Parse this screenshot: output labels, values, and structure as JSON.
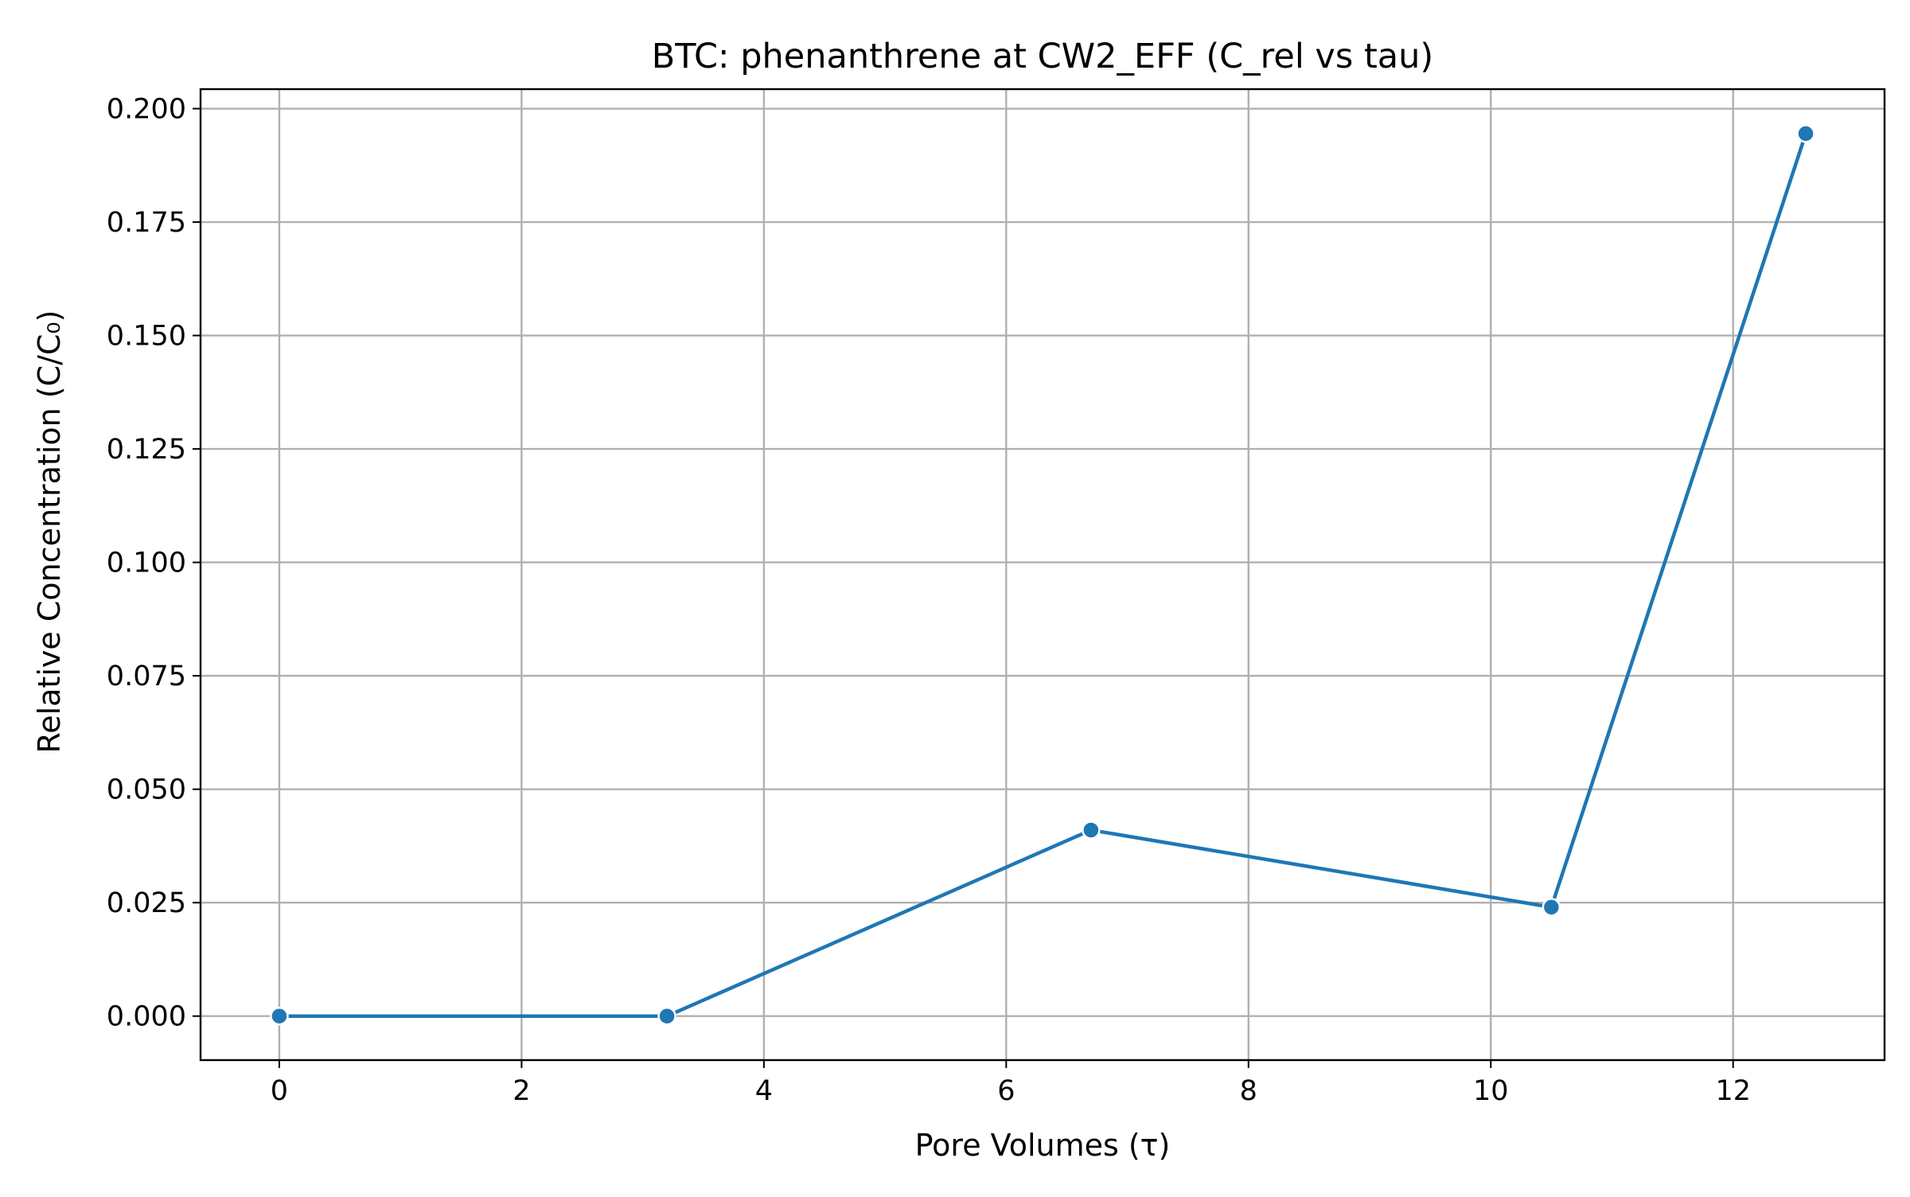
{
  "chart_data": {
    "type": "line",
    "title": "BTC: phenanthrene at CW2_EFF (C_rel vs tau)",
    "xlabel": "Pore Volumes (τ)",
    "ylabel": "Relative Concentration (C/C₀)",
    "xlim": [
      -0.65,
      13.25
    ],
    "ylim": [
      -0.0097,
      0.2043
    ],
    "x_ticks": [
      0,
      2,
      4,
      6,
      8,
      10,
      12
    ],
    "x_tick_labels": [
      "0",
      "2",
      "4",
      "6",
      "8",
      "10",
      "12"
    ],
    "y_ticks": [
      0,
      0.025,
      0.05,
      0.075,
      0.1,
      0.125,
      0.15,
      0.175,
      0.2
    ],
    "y_tick_labels": [
      "0.000",
      "0.025",
      "0.050",
      "0.075",
      "0.100",
      "0.125",
      "0.150",
      "0.175",
      "0.200"
    ],
    "grid": true,
    "legend": "none",
    "series": [
      {
        "color": "#1f77b4",
        "marker": "circle",
        "x": [
          0,
          3.2,
          6.7,
          10.5,
          12.6
        ],
        "y": [
          0.0,
          0.0,
          0.041,
          0.024,
          0.1945
        ]
      }
    ]
  }
}
